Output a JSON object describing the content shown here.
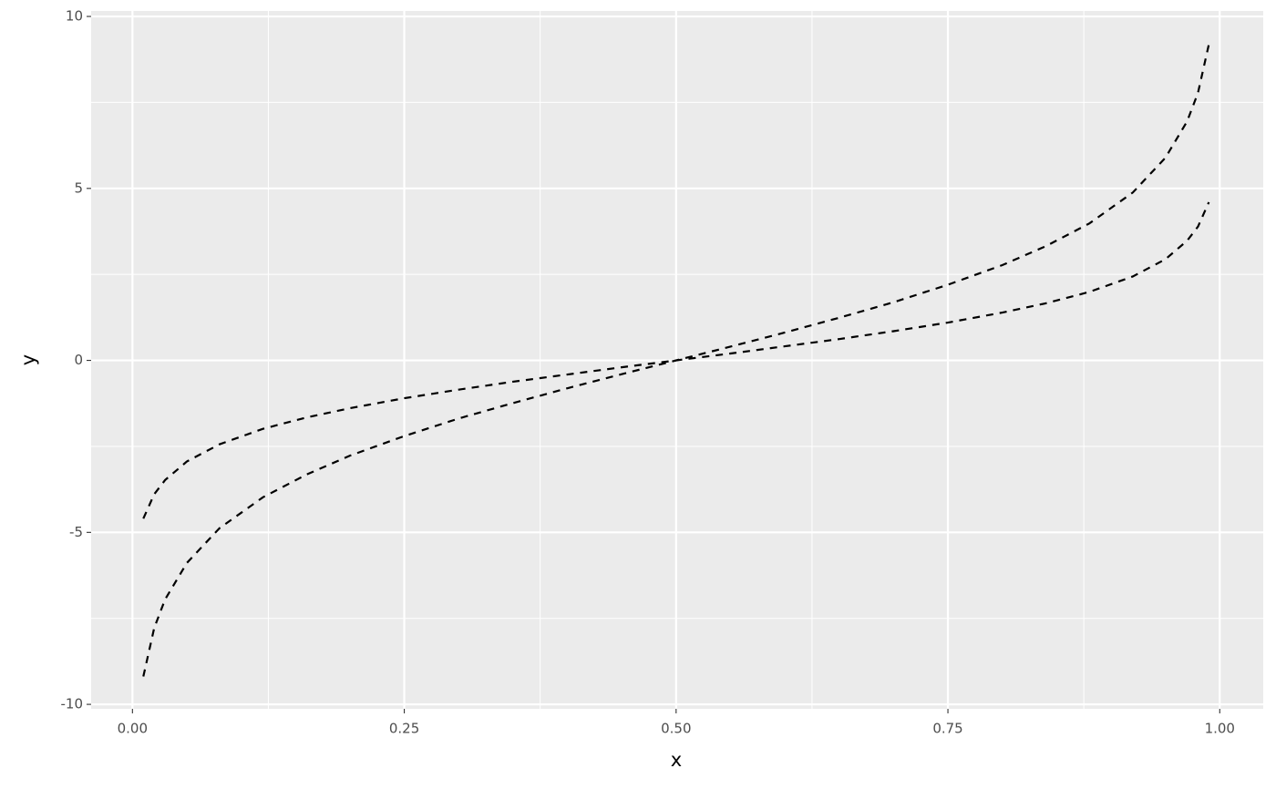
{
  "chart_data": {
    "type": "line",
    "x_label": "x",
    "y_label": "y",
    "x": [
      0.01,
      0.02,
      0.03,
      0.05,
      0.08,
      0.12,
      0.16,
      0.2,
      0.25,
      0.3,
      0.35,
      0.4,
      0.45,
      0.5,
      0.55,
      0.6,
      0.65,
      0.7,
      0.75,
      0.8,
      0.84,
      0.88,
      0.92,
      0.95,
      0.97,
      0.98,
      0.99
    ],
    "series": [
      {
        "color": "#000000",
        "values": [
          -4.6,
          -3.89,
          -3.48,
          -2.94,
          -2.44,
          -1.99,
          -1.66,
          -1.39,
          -1.1,
          -0.85,
          -0.62,
          -0.41,
          -0.2,
          0,
          0.2,
          0.41,
          0.62,
          0.85,
          1.1,
          1.39,
          1.66,
          1.99,
          2.44,
          2.94,
          3.48,
          3.89,
          4.6
        ]
      },
      {
        "color": "#000000",
        "values": [
          -9.19,
          -7.78,
          -6.95,
          -5.89,
          -4.88,
          -3.98,
          -3.32,
          -2.77,
          -2.2,
          -1.69,
          -1.24,
          -0.81,
          -0.4,
          0,
          0.4,
          0.81,
          1.24,
          1.69,
          2.2,
          2.77,
          3.32,
          3.98,
          4.88,
          5.89,
          6.95,
          7.78,
          9.19
        ]
      }
    ],
    "xlim": [
      -0.038,
      1.04
    ],
    "ylim": [
      -10.13,
      10.16
    ],
    "xticks": [
      {
        "value": 0,
        "label": "0.00"
      },
      {
        "value": 0.25,
        "label": "0.25"
      },
      {
        "value": 0.5,
        "label": "0.50"
      },
      {
        "value": 0.75,
        "label": "0.75"
      },
      {
        "value": 1,
        "label": "1.00"
      }
    ],
    "yticks": [
      -10,
      -5,
      0,
      5,
      10
    ],
    "x_minor_grid": [
      0.125,
      0.375,
      0.625,
      0.875
    ],
    "y_minor_grid": [
      -7.5,
      -2.5,
      2.5,
      7.5
    ],
    "grid": true,
    "line_style": "dashed"
  }
}
